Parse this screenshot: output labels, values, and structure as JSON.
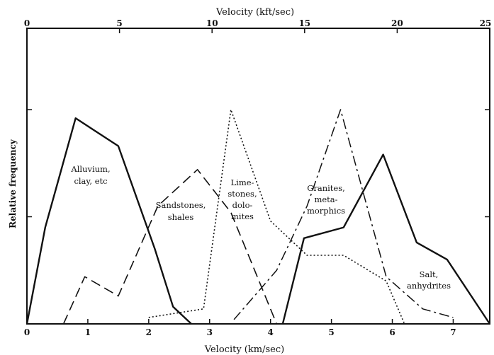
{
  "chart_data": {
    "type": "line",
    "title": "",
    "xlabel": "Velocity (km/sec)",
    "x2label": "Velocity (kft/sec)",
    "ylabel": "Relative frequency",
    "xlim": [
      0,
      7.6
    ],
    "x2lim": [
      0,
      25
    ],
    "ylim": [
      0,
      1
    ],
    "grid": false,
    "x_ticks": [
      "0",
      "1",
      "2",
      "3",
      "4",
      "5",
      "6",
      "7"
    ],
    "x2_ticks": [
      "0",
      "5",
      "10",
      "15",
      "20",
      "25"
    ],
    "series": [
      {
        "name": "Alluvium, clay, etc",
        "style": "solid",
        "points": [
          [
            0,
            0
          ],
          [
            0.3,
            0.45
          ],
          [
            0.8,
            0.96
          ],
          [
            1.5,
            0.83
          ],
          [
            2.1,
            0.35
          ],
          [
            2.4,
            0.08
          ],
          [
            2.7,
            0
          ]
        ]
      },
      {
        "name": "Sandstones, shales",
        "style": "dashed",
        "points": [
          [
            0.6,
            0
          ],
          [
            0.95,
            0.22
          ],
          [
            1.5,
            0.13
          ],
          [
            2.15,
            0.55
          ],
          [
            2.8,
            0.72
          ],
          [
            3.35,
            0.52
          ],
          [
            4.1,
            0
          ]
        ]
      },
      {
        "name": "Limestones, dolomites",
        "style": "dotted",
        "points": [
          [
            2.0,
            0.03
          ],
          [
            2.9,
            0.07
          ],
          [
            3.35,
            1.0
          ],
          [
            4.0,
            0.48
          ],
          [
            4.6,
            0.32
          ],
          [
            5.2,
            0.32
          ],
          [
            5.9,
            0.2
          ],
          [
            6.2,
            0
          ]
        ]
      },
      {
        "name": "Granites, metamorphics",
        "style": "dashdot",
        "points": [
          [
            3.4,
            0.02
          ],
          [
            4.1,
            0.25
          ],
          [
            4.6,
            0.55
          ],
          [
            5.15,
            1.0
          ],
          [
            5.9,
            0.22
          ],
          [
            6.5,
            0.07
          ],
          [
            7.0,
            0.03
          ]
        ]
      },
      {
        "name": "Salt, anhydrites",
        "style": "solid",
        "points": [
          [
            4.2,
            0
          ],
          [
            4.55,
            0.4
          ],
          [
            5.2,
            0.45
          ],
          [
            5.85,
            0.79
          ],
          [
            6.4,
            0.38
          ],
          [
            6.9,
            0.3
          ],
          [
            7.6,
            0
          ]
        ]
      }
    ],
    "annotations": {
      "alluvium": [
        "Alluvium,",
        "clay, etc"
      ],
      "sandstones": [
        "Sandstones,",
        "shales"
      ],
      "limestones": [
        "Lime-",
        "stones,",
        "dolo-",
        "mites"
      ],
      "granites": [
        "Granites,",
        "meta-",
        "morphics"
      ],
      "salt": [
        "Salt,",
        "anhydrites"
      ]
    }
  }
}
